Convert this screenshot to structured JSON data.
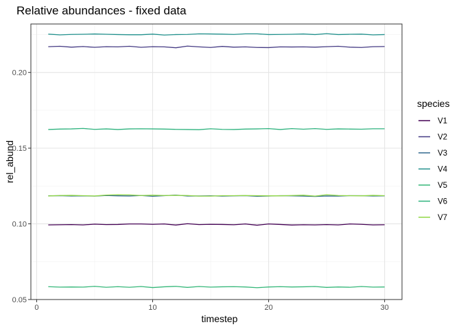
{
  "chart_data": {
    "type": "line",
    "title": "Relative abundances - fixed data",
    "xlabel": "timestep",
    "ylabel": "rel_abund",
    "xlim": [
      -0.5,
      31.5
    ],
    "ylim": [
      0.05,
      0.232
    ],
    "xticks": [
      0,
      10,
      20,
      30
    ],
    "yticks": [
      0.05,
      0.1,
      0.15,
      0.2
    ],
    "ytick_labels": [
      "0.05",
      "0.10",
      "0.15",
      "0.20"
    ],
    "grid": true,
    "legend": {
      "title": "species",
      "position": "right"
    },
    "x": [
      1,
      2,
      3,
      4,
      5,
      6,
      7,
      8,
      9,
      10,
      11,
      12,
      13,
      14,
      15,
      16,
      17,
      18,
      19,
      20,
      21,
      22,
      23,
      24,
      25,
      26,
      27,
      28,
      29,
      30
    ],
    "series": [
      {
        "name": "V1",
        "color": "#440154",
        "values": [
          0.0993,
          0.0994,
          0.0995,
          0.0993,
          0.0998,
          0.0995,
          0.0996,
          0.0999,
          0.0999,
          0.0997,
          0.0999,
          0.0992,
          0.1001,
          0.0995,
          0.0997,
          0.0996,
          0.0994,
          0.0999,
          0.0991,
          0.0999,
          0.0996,
          0.0992,
          0.0994,
          0.0993,
          0.0995,
          0.0993,
          0.0999,
          0.0997,
          0.0993,
          0.0994
        ]
      },
      {
        "name": "V2",
        "color": "#443A83",
        "values": [
          0.217,
          0.2173,
          0.2167,
          0.2171,
          0.2166,
          0.217,
          0.2169,
          0.2173,
          0.2166,
          0.217,
          0.2169,
          0.2163,
          0.2174,
          0.2169,
          0.2165,
          0.2172,
          0.2167,
          0.2169,
          0.2165,
          0.2164,
          0.2169,
          0.2168,
          0.2169,
          0.2167,
          0.217,
          0.2173,
          0.2167,
          0.2165,
          0.217,
          0.2171
        ]
      },
      {
        "name": "V3",
        "color": "#31688E",
        "values": [
          0.1185,
          0.1186,
          0.1184,
          0.1185,
          0.1183,
          0.1187,
          0.1185,
          0.1184,
          0.1187,
          0.1182,
          0.1186,
          0.119,
          0.1184,
          0.1184,
          0.1185,
          0.1183,
          0.1185,
          0.1186,
          0.1182,
          0.1184,
          0.1186,
          0.1185,
          0.1183,
          0.1181,
          0.1184,
          0.1183,
          0.1186,
          0.1186,
          0.1184,
          0.1185
        ]
      },
      {
        "name": "V4",
        "color": "#21908C",
        "values": [
          0.2253,
          0.2248,
          0.2251,
          0.2252,
          0.2254,
          0.2252,
          0.225,
          0.2249,
          0.2249,
          0.2253,
          0.2247,
          0.225,
          0.2251,
          0.2255,
          0.2254,
          0.2253,
          0.2251,
          0.2255,
          0.2255,
          0.225,
          0.2251,
          0.2252,
          0.2254,
          0.225,
          0.2256,
          0.225,
          0.2252,
          0.2253,
          0.2248,
          0.225
        ]
      },
      {
        "name": "V5",
        "color": "#35B779",
        "values": [
          0.0585,
          0.0582,
          0.0583,
          0.0582,
          0.0587,
          0.0581,
          0.0585,
          0.0581,
          0.0586,
          0.0579,
          0.0584,
          0.0587,
          0.058,
          0.0586,
          0.0582,
          0.0584,
          0.0585,
          0.0583,
          0.0578,
          0.0583,
          0.0585,
          0.0583,
          0.0584,
          0.0586,
          0.058,
          0.0583,
          0.0581,
          0.0586,
          0.0582,
          0.0583
        ]
      },
      {
        "name": "V6",
        "color": "#2DB27D",
        "values": [
          0.1623,
          0.1626,
          0.1627,
          0.163,
          0.1624,
          0.1627,
          0.1623,
          0.1627,
          0.1628,
          0.1627,
          0.1626,
          0.1624,
          0.1623,
          0.1622,
          0.1628,
          0.1624,
          0.1623,
          0.1626,
          0.1627,
          0.1629,
          0.1623,
          0.1629,
          0.1625,
          0.1629,
          0.1624,
          0.1627,
          0.1626,
          0.1625,
          0.1628,
          0.1628
        ]
      },
      {
        "name": "V7",
        "color": "#8FD744",
        "values": [
          0.1184,
          0.1187,
          0.1188,
          0.1186,
          0.1184,
          0.119,
          0.1192,
          0.1191,
          0.1187,
          0.1189,
          0.1187,
          0.1188,
          0.1187,
          0.1183,
          0.1183,
          0.1186,
          0.1186,
          0.1187,
          0.1186,
          0.1185,
          0.1185,
          0.1187,
          0.1189,
          0.1183,
          0.1192,
          0.1187,
          0.1186,
          0.1185,
          0.1188,
          0.1186
        ]
      }
    ]
  }
}
